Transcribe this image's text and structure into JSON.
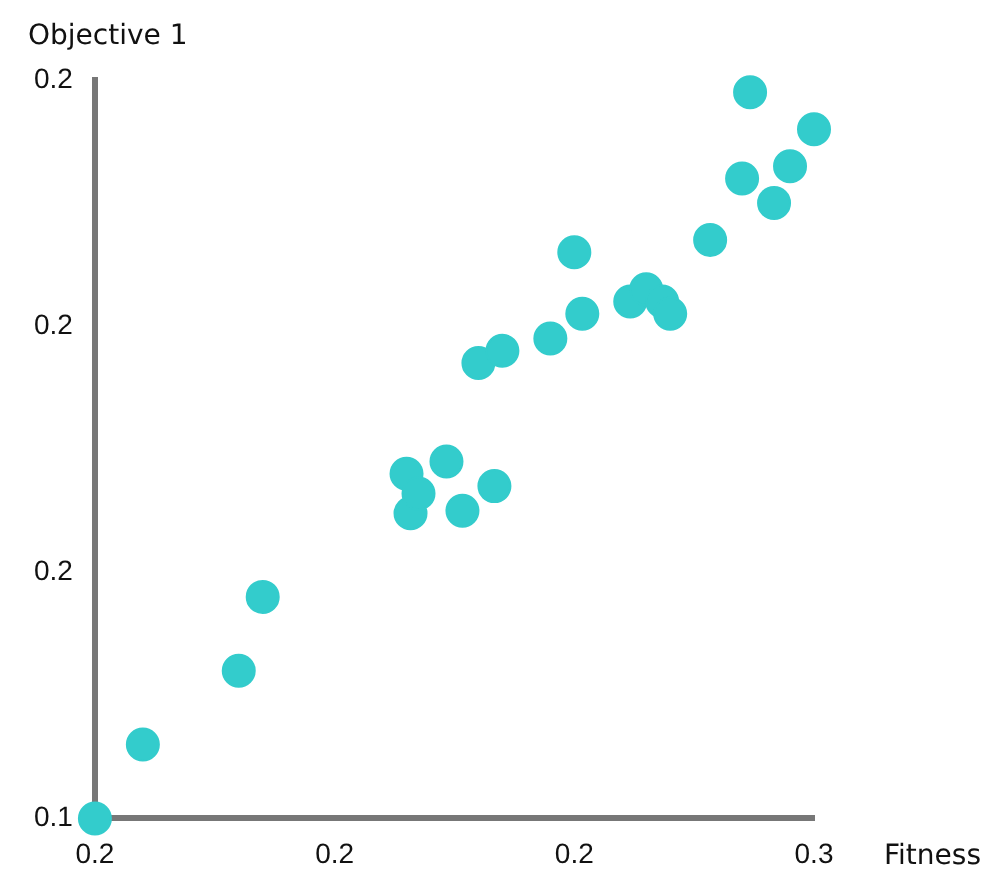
{
  "chart_data": {
    "type": "scatter",
    "xlabel": "Fitness",
    "ylabel": "Objective 1",
    "x": [
      0.17,
      0.176,
      0.188,
      0.191,
      0.209,
      0.2095,
      0.2105,
      0.214,
      0.216,
      0.22,
      0.218,
      0.221,
      0.227,
      0.23,
      0.231,
      0.237,
      0.239,
      0.241,
      0.242,
      0.247,
      0.251,
      0.252,
      0.255,
      0.257,
      0.26
    ],
    "series": [
      {
        "color": "#33cccc",
        "values": [
          0.14,
          0.146,
          0.152,
          0.158,
          0.168,
          0.1648,
          0.1664,
          0.169,
          0.165,
          0.167,
          0.177,
          0.178,
          0.179,
          0.186,
          0.181,
          0.182,
          0.183,
          0.182,
          0.181,
          0.187,
          0.192,
          0.199,
          0.19,
          0.193,
          0.196
        ]
      }
    ],
    "xlim": [
      0.17,
      0.26
    ],
    "xticks": [
      {
        "value": 0.17,
        "label": "0.2"
      },
      {
        "value": 0.2,
        "label": "0.2"
      },
      {
        "value": 0.23,
        "label": "0.2"
      },
      {
        "value": 0.26,
        "label": "0.3"
      }
    ],
    "ylim": [
      0.14,
      0.2
    ],
    "yticks": [
      {
        "value": 0.14,
        "label": "0.1"
      },
      {
        "value": 0.16,
        "label": "0.2"
      },
      {
        "value": 0.18,
        "label": "0.2"
      },
      {
        "value": 0.2,
        "label": "0.2"
      }
    ],
    "grid": false,
    "legend": false,
    "marker": "circle"
  }
}
